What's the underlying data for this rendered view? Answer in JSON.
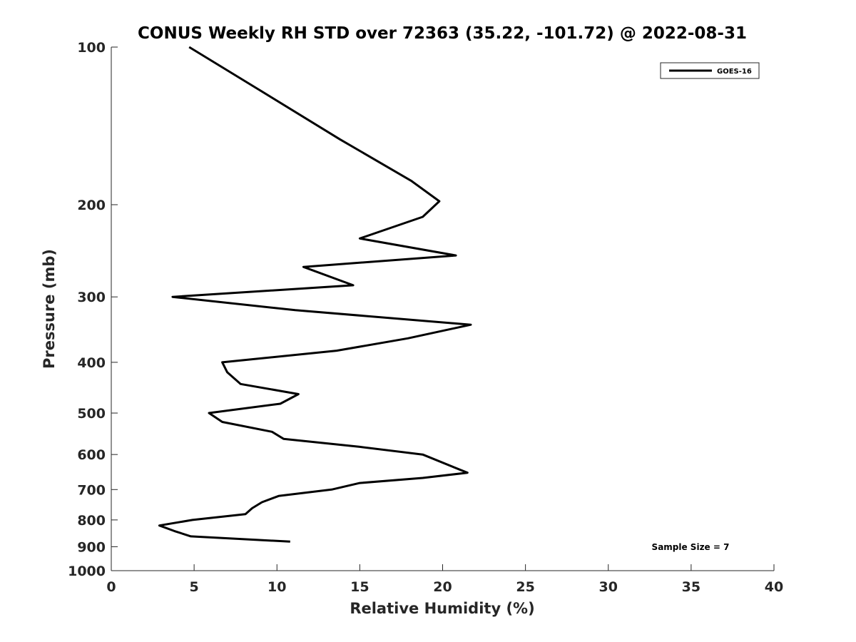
{
  "chart_data": {
    "type": "line",
    "title": "CONUS Weekly RH STD over 72363 (35.22, -101.72) @ 2022-08-31",
    "xlabel": "Relative Humidity (%)",
    "ylabel": "Pressure (mb)",
    "xlim": [
      0,
      40
    ],
    "ylim": [
      100,
      1000
    ],
    "y_scale": "log",
    "y_reversed": true,
    "grid": false,
    "x_ticks": [
      0,
      5,
      10,
      15,
      20,
      25,
      30,
      35,
      40
    ],
    "y_ticks": [
      100,
      200,
      300,
      400,
      500,
      600,
      700,
      800,
      900,
      1000
    ],
    "legend": {
      "position": "top-right",
      "entries": [
        "GOES-16"
      ]
    },
    "annotation": "Sample Size = 7",
    "series": [
      {
        "name": "GOES-16",
        "color": "#000000",
        "points": [
          {
            "rh": 4.7,
            "p": 100
          },
          {
            "rh": 8.8,
            "p": 120
          },
          {
            "rh": 13.8,
            "p": 150
          },
          {
            "rh": 18.1,
            "p": 180
          },
          {
            "rh": 19.8,
            "p": 197
          },
          {
            "rh": 18.8,
            "p": 211
          },
          {
            "rh": 15.0,
            "p": 232
          },
          {
            "rh": 20.8,
            "p": 250
          },
          {
            "rh": 11.6,
            "p": 263
          },
          {
            "rh": 14.6,
            "p": 285
          },
          {
            "rh": 3.7,
            "p": 300
          },
          {
            "rh": 11.1,
            "p": 318
          },
          {
            "rh": 21.7,
            "p": 339
          },
          {
            "rh": 17.9,
            "p": 360
          },
          {
            "rh": 13.6,
            "p": 380
          },
          {
            "rh": 6.7,
            "p": 400
          },
          {
            "rh": 7.0,
            "p": 418
          },
          {
            "rh": 7.8,
            "p": 440
          },
          {
            "rh": 11.3,
            "p": 460
          },
          {
            "rh": 10.2,
            "p": 480
          },
          {
            "rh": 5.9,
            "p": 500
          },
          {
            "rh": 6.7,
            "p": 520
          },
          {
            "rh": 9.7,
            "p": 543
          },
          {
            "rh": 10.4,
            "p": 560
          },
          {
            "rh": 15.0,
            "p": 580
          },
          {
            "rh": 18.8,
            "p": 600
          },
          {
            "rh": 21.5,
            "p": 650
          },
          {
            "rh": 18.8,
            "p": 665
          },
          {
            "rh": 15.0,
            "p": 680
          },
          {
            "rh": 13.3,
            "p": 700
          },
          {
            "rh": 10.1,
            "p": 720
          },
          {
            "rh": 9.1,
            "p": 740
          },
          {
            "rh": 8.5,
            "p": 760
          },
          {
            "rh": 8.1,
            "p": 780
          },
          {
            "rh": 4.9,
            "p": 800
          },
          {
            "rh": 2.9,
            "p": 820
          },
          {
            "rh": 3.8,
            "p": 840
          },
          {
            "rh": 4.8,
            "p": 860
          },
          {
            "rh": 10.8,
            "p": 880
          }
        ]
      }
    ]
  }
}
